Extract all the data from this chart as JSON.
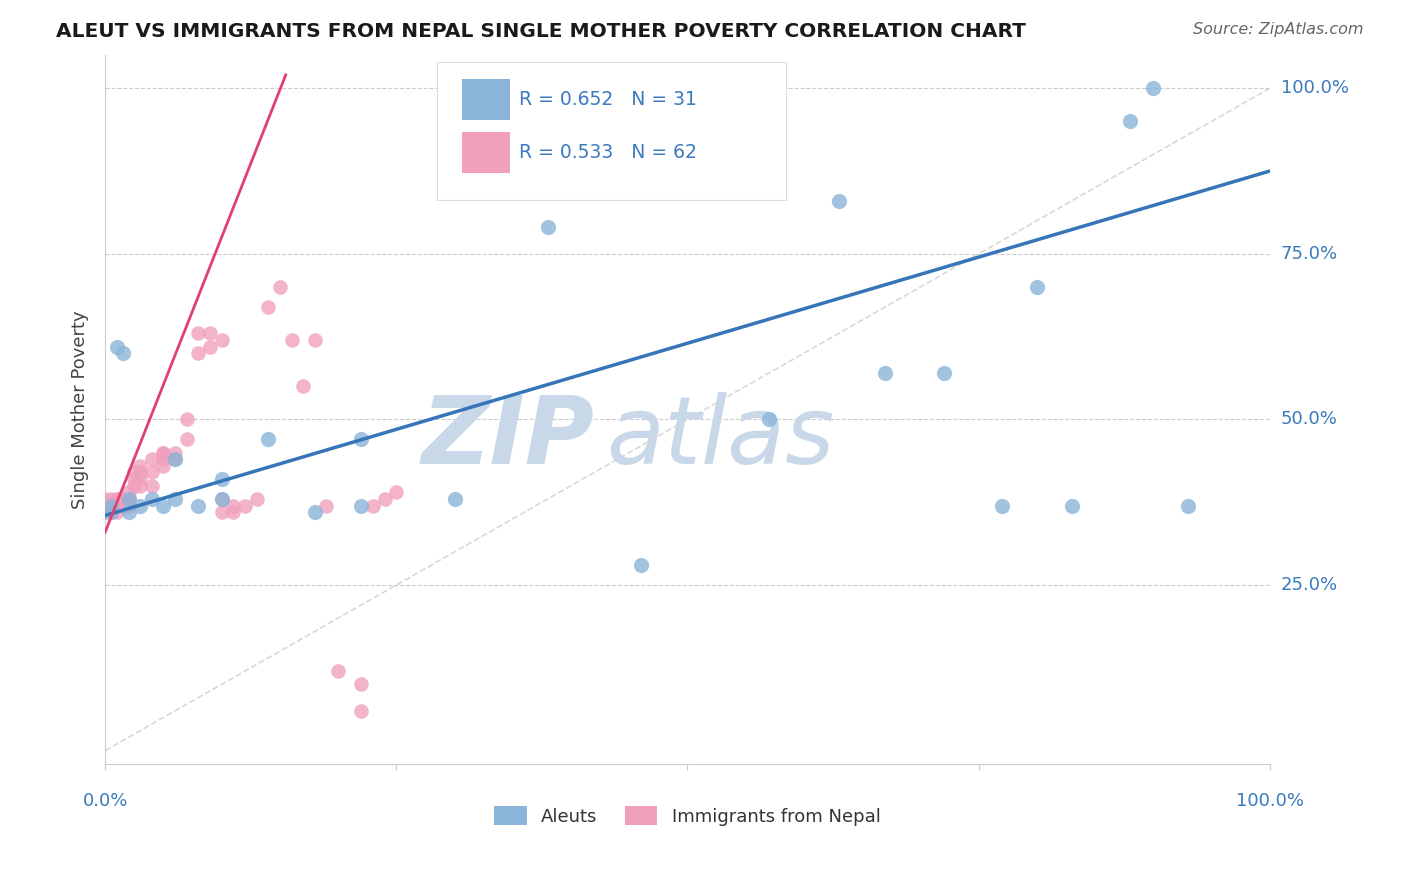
{
  "title": "ALEUT VS IMMIGRANTS FROM NEPAL SINGLE MOTHER POVERTY CORRELATION CHART",
  "source": "Source: ZipAtlas.com",
  "ylabel": "Single Mother Poverty",
  "xlim": [
    0.0,
    1.0
  ],
  "ylim": [
    -0.02,
    1.05
  ],
  "ytick_vals": [
    0.25,
    0.5,
    0.75,
    1.0
  ],
  "ytick_labels": [
    "25.0%",
    "50.0%",
    "75.0%",
    "100.0%"
  ],
  "aleuts_color": "#8ab4d9",
  "nepal_color": "#f0a0bc",
  "aleuts_line_color": "#3575b8",
  "nepal_line_color": "#e04070",
  "watermark_zip": "ZIP",
  "watermark_atlas": "atlas",
  "watermark_color": "#c8d8e8",
  "background_color": "#ffffff",
  "legend_r1": "R = 0.652   N = 31",
  "legend_r2": "R = 0.533   N = 62",
  "legend_color": "#3a7abf",
  "aleuts_x": [
    0.005,
    0.01,
    0.015,
    0.02,
    0.03,
    0.04,
    0.05,
    0.06,
    0.08,
    0.1,
    0.14,
    0.18,
    0.22,
    0.3,
    0.38,
    0.46,
    0.57,
    0.63,
    0.67,
    0.72,
    0.77,
    0.8,
    0.83,
    0.88,
    0.9,
    0.93,
    0.005,
    0.02,
    0.06,
    0.1,
    0.22
  ],
  "aleuts_y": [
    0.37,
    0.61,
    0.6,
    0.38,
    0.37,
    0.38,
    0.37,
    0.38,
    0.37,
    0.38,
    0.47,
    0.36,
    0.47,
    0.38,
    0.79,
    0.28,
    0.5,
    0.83,
    0.57,
    0.57,
    0.37,
    0.7,
    0.37,
    0.95,
    1.0,
    0.37,
    0.36,
    0.36,
    0.44,
    0.41,
    0.37
  ],
  "nepal_x": [
    0.0,
    0.0,
    0.0,
    0.0,
    0.0,
    0.005,
    0.005,
    0.005,
    0.005,
    0.01,
    0.01,
    0.01,
    0.01,
    0.01,
    0.015,
    0.015,
    0.015,
    0.02,
    0.02,
    0.02,
    0.02,
    0.025,
    0.025,
    0.025,
    0.03,
    0.03,
    0.03,
    0.03,
    0.04,
    0.04,
    0.04,
    0.05,
    0.05,
    0.05,
    0.05,
    0.06,
    0.06,
    0.07,
    0.07,
    0.08,
    0.08,
    0.09,
    0.09,
    0.1,
    0.1,
    0.1,
    0.11,
    0.11,
    0.12,
    0.13,
    0.14,
    0.15,
    0.16,
    0.17,
    0.18,
    0.19,
    0.2,
    0.22,
    0.22,
    0.23,
    0.24,
    0.25
  ],
  "nepal_y": [
    0.36,
    0.37,
    0.38,
    0.37,
    0.36,
    0.37,
    0.38,
    0.36,
    0.36,
    0.37,
    0.38,
    0.36,
    0.37,
    0.38,
    0.37,
    0.38,
    0.37,
    0.38,
    0.39,
    0.37,
    0.38,
    0.4,
    0.42,
    0.41,
    0.4,
    0.41,
    0.43,
    0.42,
    0.4,
    0.42,
    0.44,
    0.45,
    0.43,
    0.45,
    0.44,
    0.45,
    0.44,
    0.47,
    0.5,
    0.6,
    0.63,
    0.63,
    0.61,
    0.62,
    0.38,
    0.36,
    0.37,
    0.36,
    0.37,
    0.38,
    0.67,
    0.7,
    0.62,
    0.55,
    0.62,
    0.37,
    0.12,
    0.06,
    0.1,
    0.37,
    0.38,
    0.39
  ],
  "blue_line_x": [
    0.0,
    1.0
  ],
  "blue_line_y": [
    0.355,
    0.875
  ],
  "pink_line_x": [
    0.0,
    0.155
  ],
  "pink_line_y": [
    0.33,
    1.02
  ],
  "diag_line_x": [
    0.0,
    1.0
  ],
  "diag_line_y": [
    0.0,
    1.0
  ]
}
